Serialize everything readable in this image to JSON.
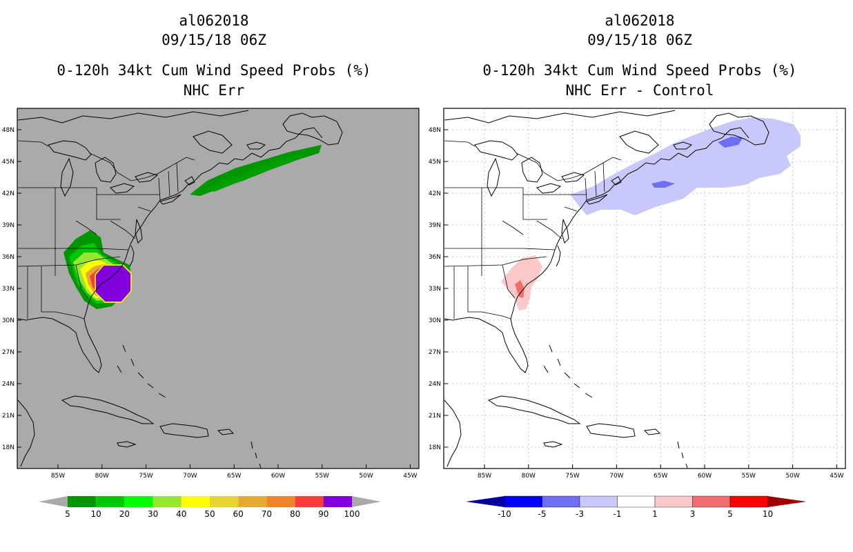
{
  "left_panel": {
    "title_lines": [
      "al062018",
      "09/15/18 06Z",
      "0-120h 34kt Cum Wind Speed Probs (%)",
      "NHC Err"
    ],
    "background_color": "#aaaaaa"
  },
  "right_panel": {
    "title_lines": [
      "al062018",
      "09/15/18 06Z",
      "0-120h 34kt Cum Wind Speed Probs (%)",
      "NHC Err - Control"
    ],
    "background_color": "#ffffff"
  },
  "axes": {
    "lat_labels": [
      "48N",
      "45N",
      "42N",
      "39N",
      "36N",
      "33N",
      "30N",
      "27N",
      "24N",
      "21N",
      "18N"
    ],
    "lon_labels": [
      "85W",
      "80W",
      "75W",
      "70W",
      "65W",
      "60W",
      "55W",
      "50W",
      "45W"
    ]
  },
  "left_colorbar": {
    "labels": [
      "5",
      "10",
      "20",
      "30",
      "40",
      "50",
      "60",
      "70",
      "80",
      "90",
      "100"
    ],
    "colors": [
      "#009600",
      "#00c800",
      "#00ff00",
      "#96e632",
      "#ffff00",
      "#e6d232",
      "#e6aa32",
      "#f08228",
      "#fa3c3c",
      "#a00000",
      "#8200dc"
    ]
  },
  "right_colorbar": {
    "labels": [
      "-10",
      "-5",
      "-3",
      "-1",
      "1",
      "3",
      "5",
      "10"
    ],
    "colors": [
      "#0000a0",
      "#0000ff",
      "#6e6ef0",
      "#c8c8fa",
      "#ffffff",
      "#fac8c8",
      "#f06e6e",
      "#ff0000",
      "#a00000"
    ]
  }
}
